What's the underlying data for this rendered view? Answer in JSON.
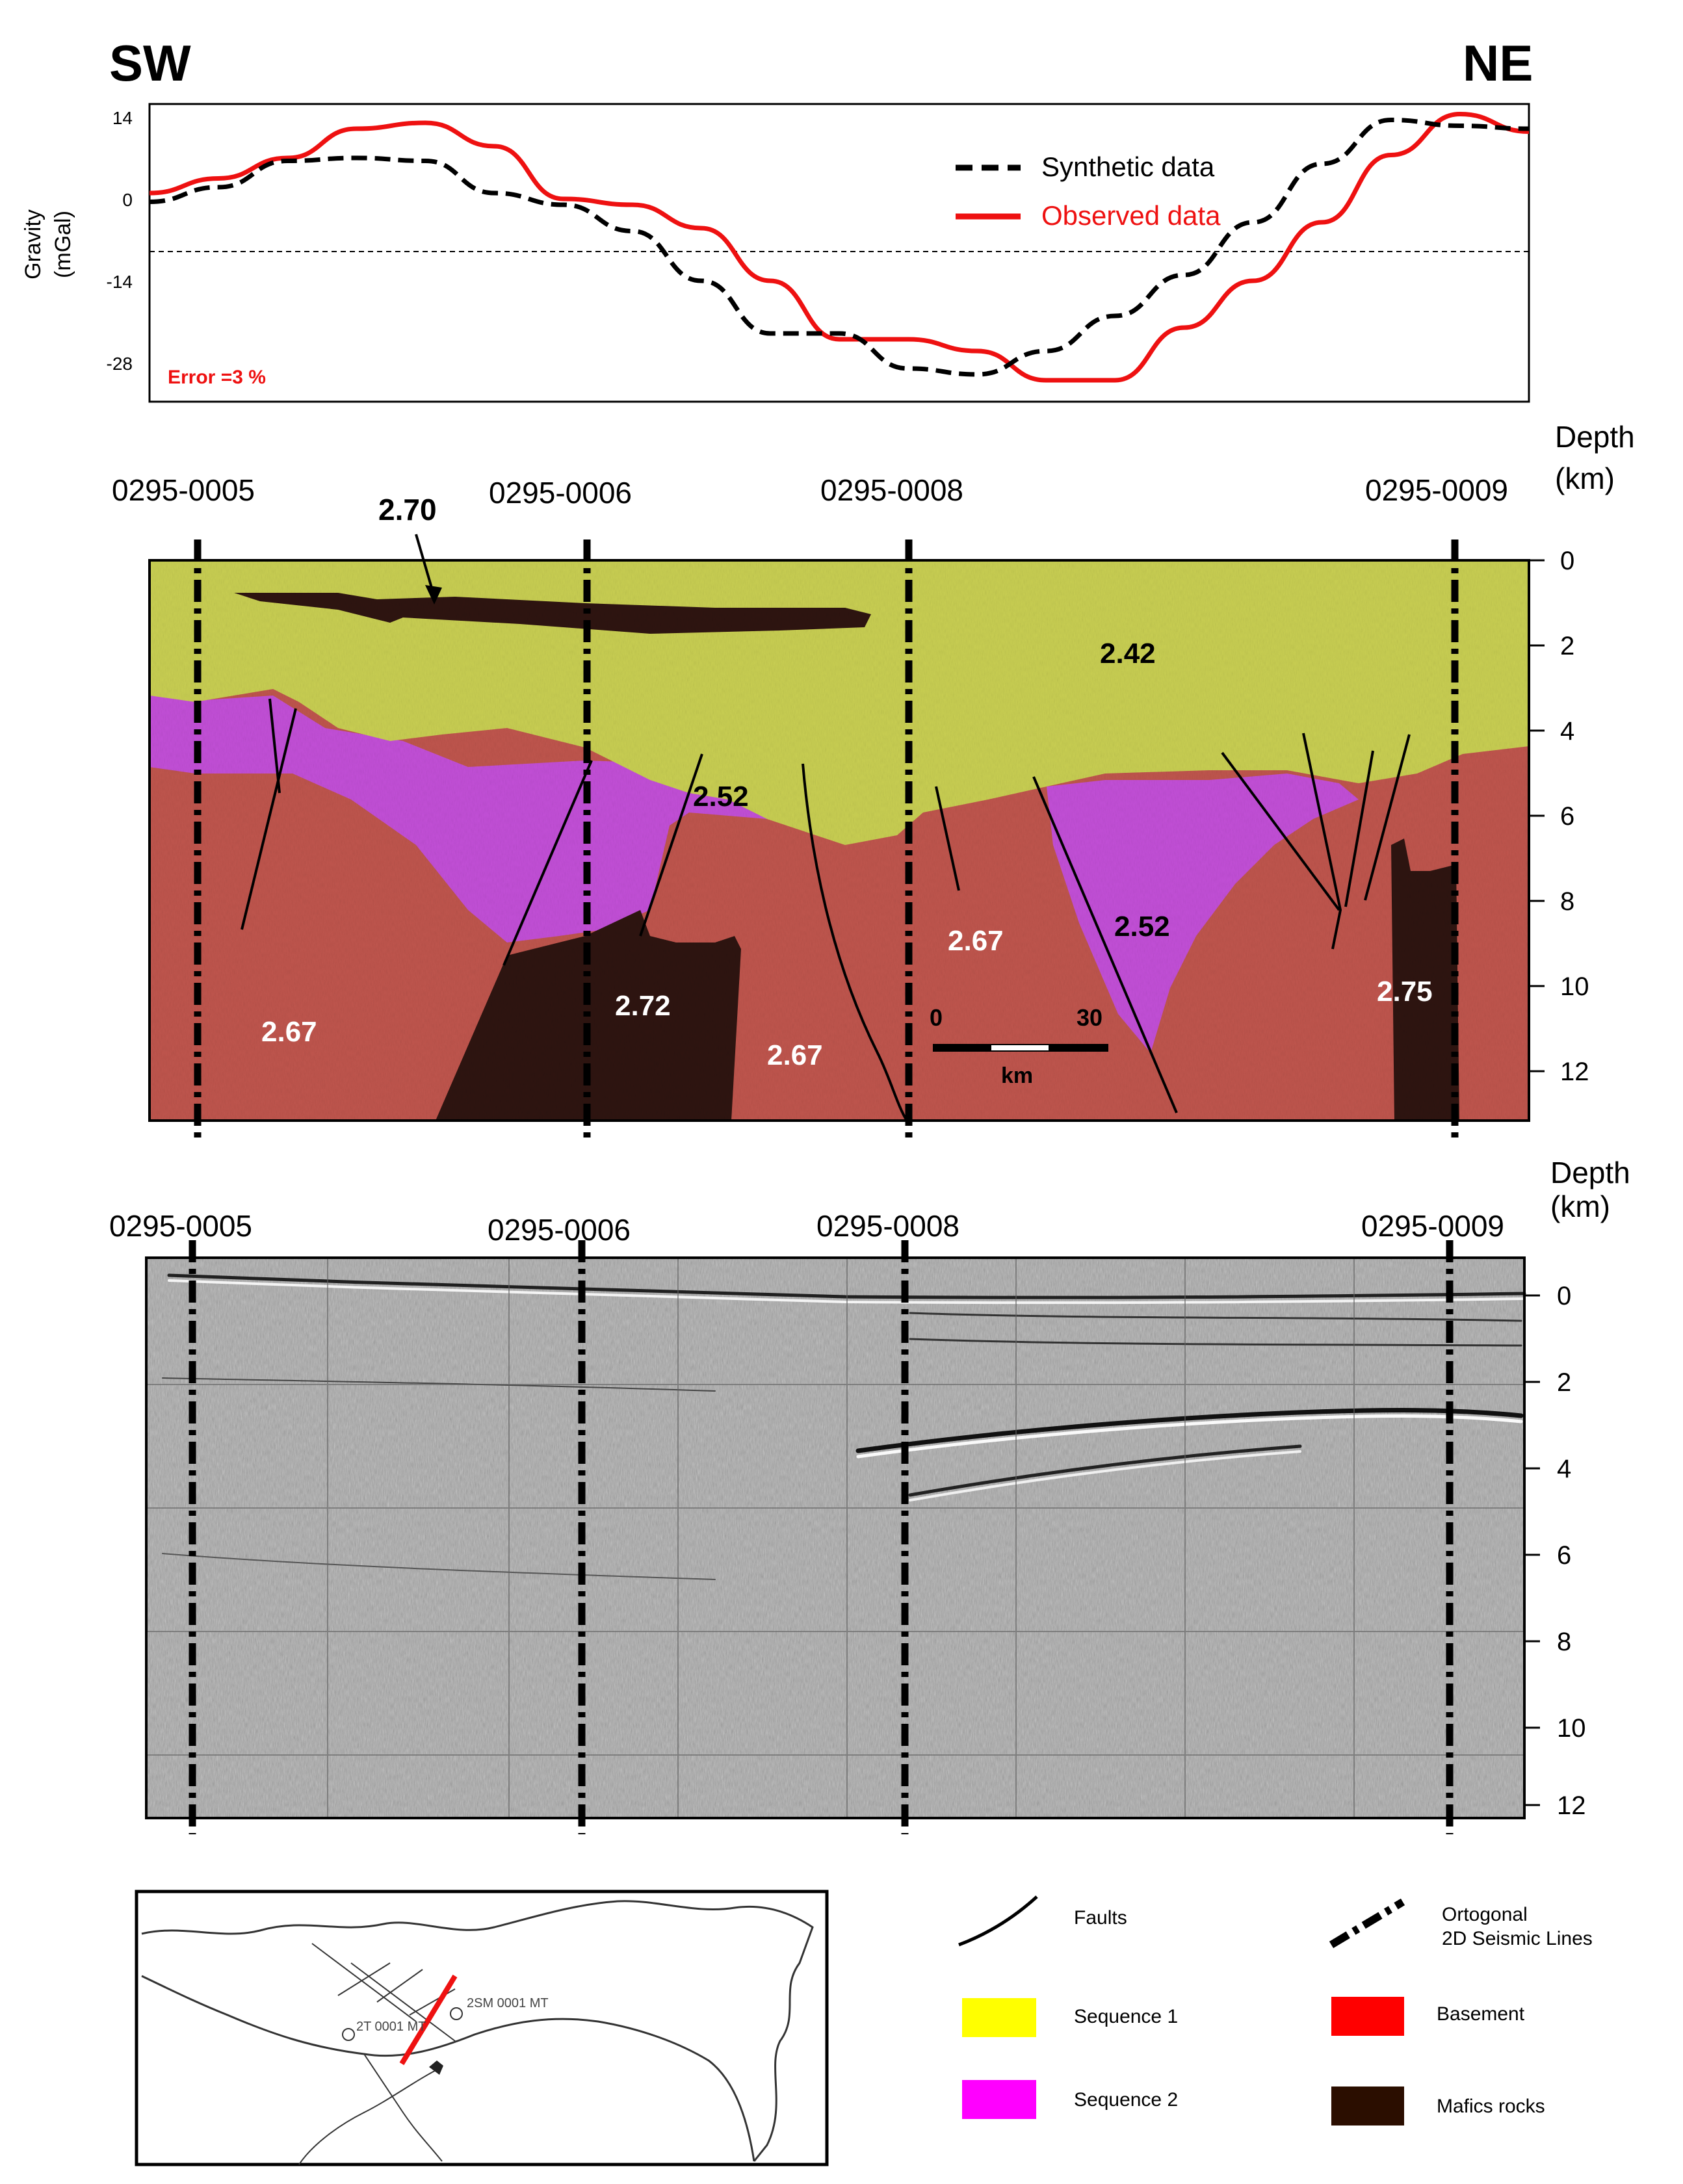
{
  "header": {
    "left_dir": "SW",
    "right_dir": "NE"
  },
  "gravity_chart": {
    "y_axis_label_1": "Gravity",
    "y_axis_label_2": "(mGal)",
    "y_ticks": [
      "14",
      "0",
      "-14",
      "-28"
    ],
    "error_label": "Error =3 %",
    "legend": {
      "synthetic": "Synthetic data",
      "observed": "Observed data"
    },
    "colors": {
      "synthetic": "#000000",
      "observed": "#ee1111"
    }
  },
  "chart_data": {
    "type": "line",
    "title": "",
    "xlabel": "",
    "ylabel": "Gravity (mGal)",
    "ylim": [
      -35,
      18
    ],
    "reference_line_y": -9,
    "x": [
      0,
      0.05,
      0.1,
      0.15,
      0.2,
      0.25,
      0.3,
      0.35,
      0.4,
      0.45,
      0.5,
      0.55,
      0.6,
      0.65,
      0.7,
      0.75,
      0.8,
      0.85,
      0.9,
      0.95,
      1.0
    ],
    "series": [
      {
        "name": "Synthetic data",
        "style": "dashed",
        "values": [
          -0.5,
          2.0,
          6.5,
          7.0,
          6.5,
          1.0,
          -1.0,
          -5.5,
          -14.0,
          -23.0,
          -23.0,
          -29.0,
          -30.0,
          -26.0,
          -20.0,
          -13.0,
          -4.0,
          6.0,
          13.5,
          12.5,
          12.0
        ]
      },
      {
        "name": "Observed data",
        "style": "solid",
        "values": [
          1.0,
          3.5,
          7.0,
          12.0,
          13.0,
          9.0,
          0.0,
          -1.0,
          -5.0,
          -14.0,
          -24.0,
          -24.0,
          -26.0,
          -31.0,
          -31.0,
          -22.0,
          -14.0,
          -4.0,
          7.5,
          14.5,
          11.5
        ]
      }
    ]
  },
  "density_model": {
    "depth_title_1": "Depth",
    "depth_title_2": "(km)",
    "depth_ticks": [
      "0",
      "2",
      "4",
      "6",
      "8",
      "10",
      "12"
    ],
    "line_labels": [
      "0295-0005",
      "0295-0006",
      "0295-0008",
      "0295-0009"
    ],
    "annotations": {
      "mafic_sill": "2.70",
      "seq1_ne": "2.42",
      "seq2_center": "2.52",
      "seq2_ne": "2.52",
      "basement_sw": "2.67",
      "mafic_center": "2.72",
      "basement_center": "2.67",
      "basement_ne": "2.67",
      "mafic_ne": "2.75"
    },
    "scale_bar": {
      "start": "0",
      "end": "30",
      "unit": "km"
    },
    "colors": {
      "sequence1": "#c9cf52",
      "sequence2": "#c34fd8",
      "basement": "#c0554d",
      "mafic": "#2e1410"
    }
  },
  "seismic_section": {
    "depth_title_1": "Depth",
    "depth_title_2": "(km)",
    "depth_ticks": [
      "0",
      "2",
      "4",
      "6",
      "8",
      "10",
      "12"
    ],
    "line_labels": [
      "0295-0005",
      "0295-0006",
      "0295-0008",
      "0295-0009"
    ]
  },
  "legend": {
    "faults": "Faults",
    "seismic_lines_1": "Ortogonal",
    "seismic_lines_2": "2D Seismic Lines",
    "sequence1": "Sequence 1",
    "basement": "Basement",
    "sequence2": "Sequence 2",
    "mafics": "Mafics rocks",
    "colors": {
      "sequence1": "#ffff00",
      "basement": "#ff0000",
      "sequence2": "#ff00ff",
      "mafics": "#2b0e00"
    }
  },
  "location_map": {
    "label_a": "2SM 0001 MT",
    "label_b": "2T 0001 MT"
  }
}
